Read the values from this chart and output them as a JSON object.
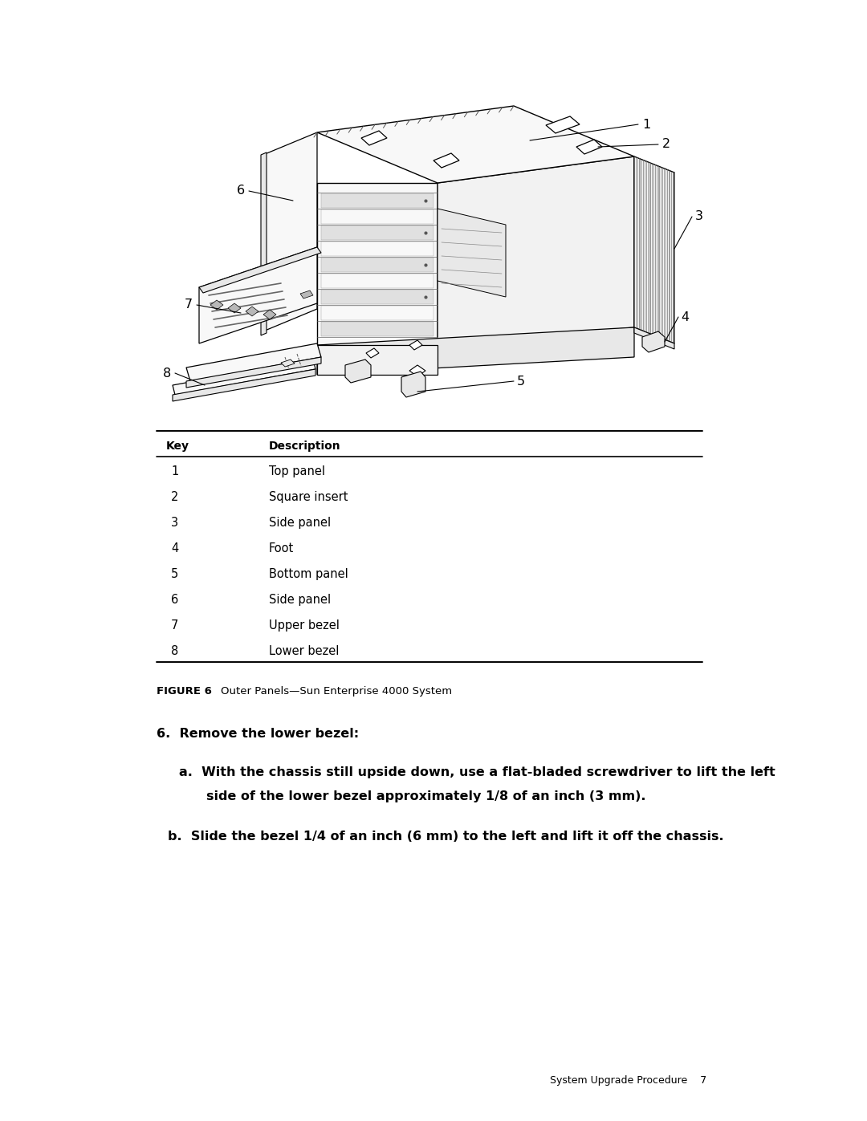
{
  "bg_color": "#ffffff",
  "page_width": 10.8,
  "page_height": 13.97,
  "dpi": 100,
  "table_keys": [
    "1",
    "2",
    "3",
    "4",
    "5",
    "6",
    "7",
    "8"
  ],
  "table_descriptions": [
    "Top panel",
    "Square insert",
    "Side panel",
    "Foot",
    "Bottom panel",
    "Side panel",
    "Upper bezel",
    "Lower bezel"
  ],
  "figure_label": "FIGURE 6",
  "figure_caption": "Outer Panels—Sun Enterprise 4000 System",
  "step6_header": "6.  Remove the lower bezel:",
  "step6a_line1": "a.  With the chassis still upside down, use a flat-bladed screwdriver to lift the left",
  "step6a_line2": "side of the lower bezel approximately 1/8 of an inch (3 mm).",
  "step6b": "b.  Slide the bezel 1/4 of an inch (6 mm) to the left and lift it off the chassis.",
  "footer_text": "System Upgrade Procedure    7",
  "text_color": "#000000",
  "line_color": "#000000",
  "fill_white": "#ffffff",
  "fill_light": "#f2f2f2",
  "fill_lighter": "#f8f8f8",
  "fill_med": "#e8e8e8",
  "fill_dark": "#d0d0d0",
  "fill_darker": "#b8b8b8",
  "fill_darkest": "#909090"
}
